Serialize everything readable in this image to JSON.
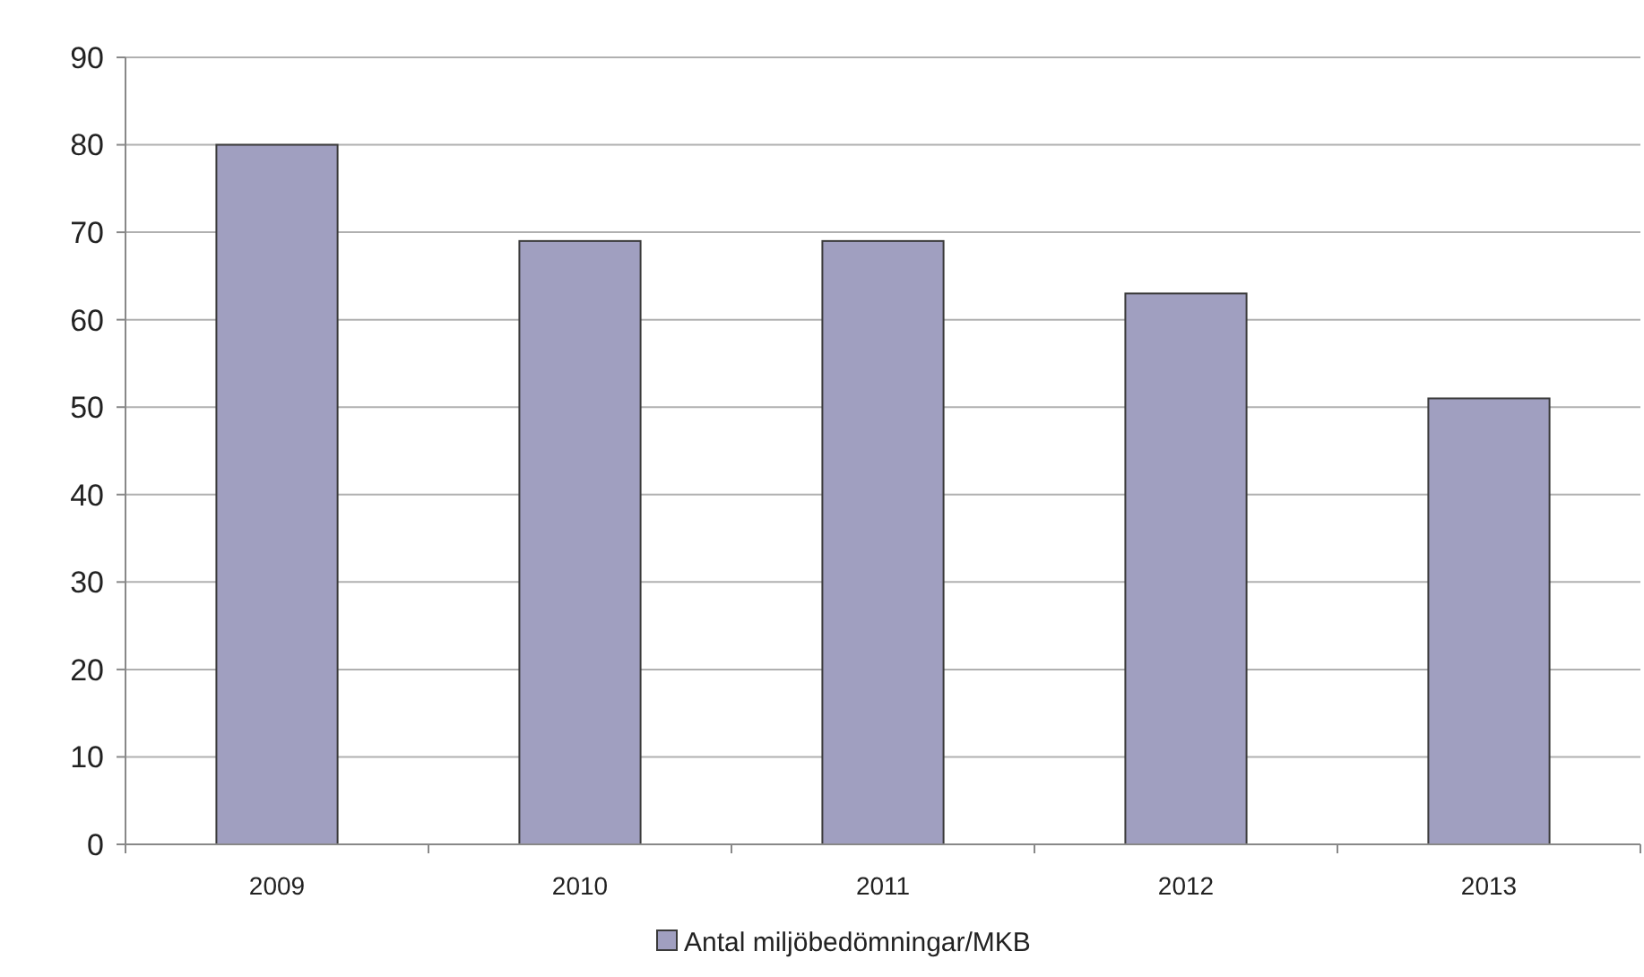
{
  "chart_data": {
    "type": "bar",
    "categories": [
      "2009",
      "2010",
      "2011",
      "2012",
      "2013"
    ],
    "series": [
      {
        "name": "Antal miljöbedömningar/MKB",
        "color": "#a09fc0",
        "values": [
          80,
          69,
          69,
          63,
          51
        ]
      }
    ],
    "ylim": [
      0,
      90
    ],
    "yticks": [
      0,
      10,
      20,
      30,
      40,
      50,
      60,
      70,
      80,
      90
    ],
    "grid": "y",
    "legend": "bottom"
  }
}
